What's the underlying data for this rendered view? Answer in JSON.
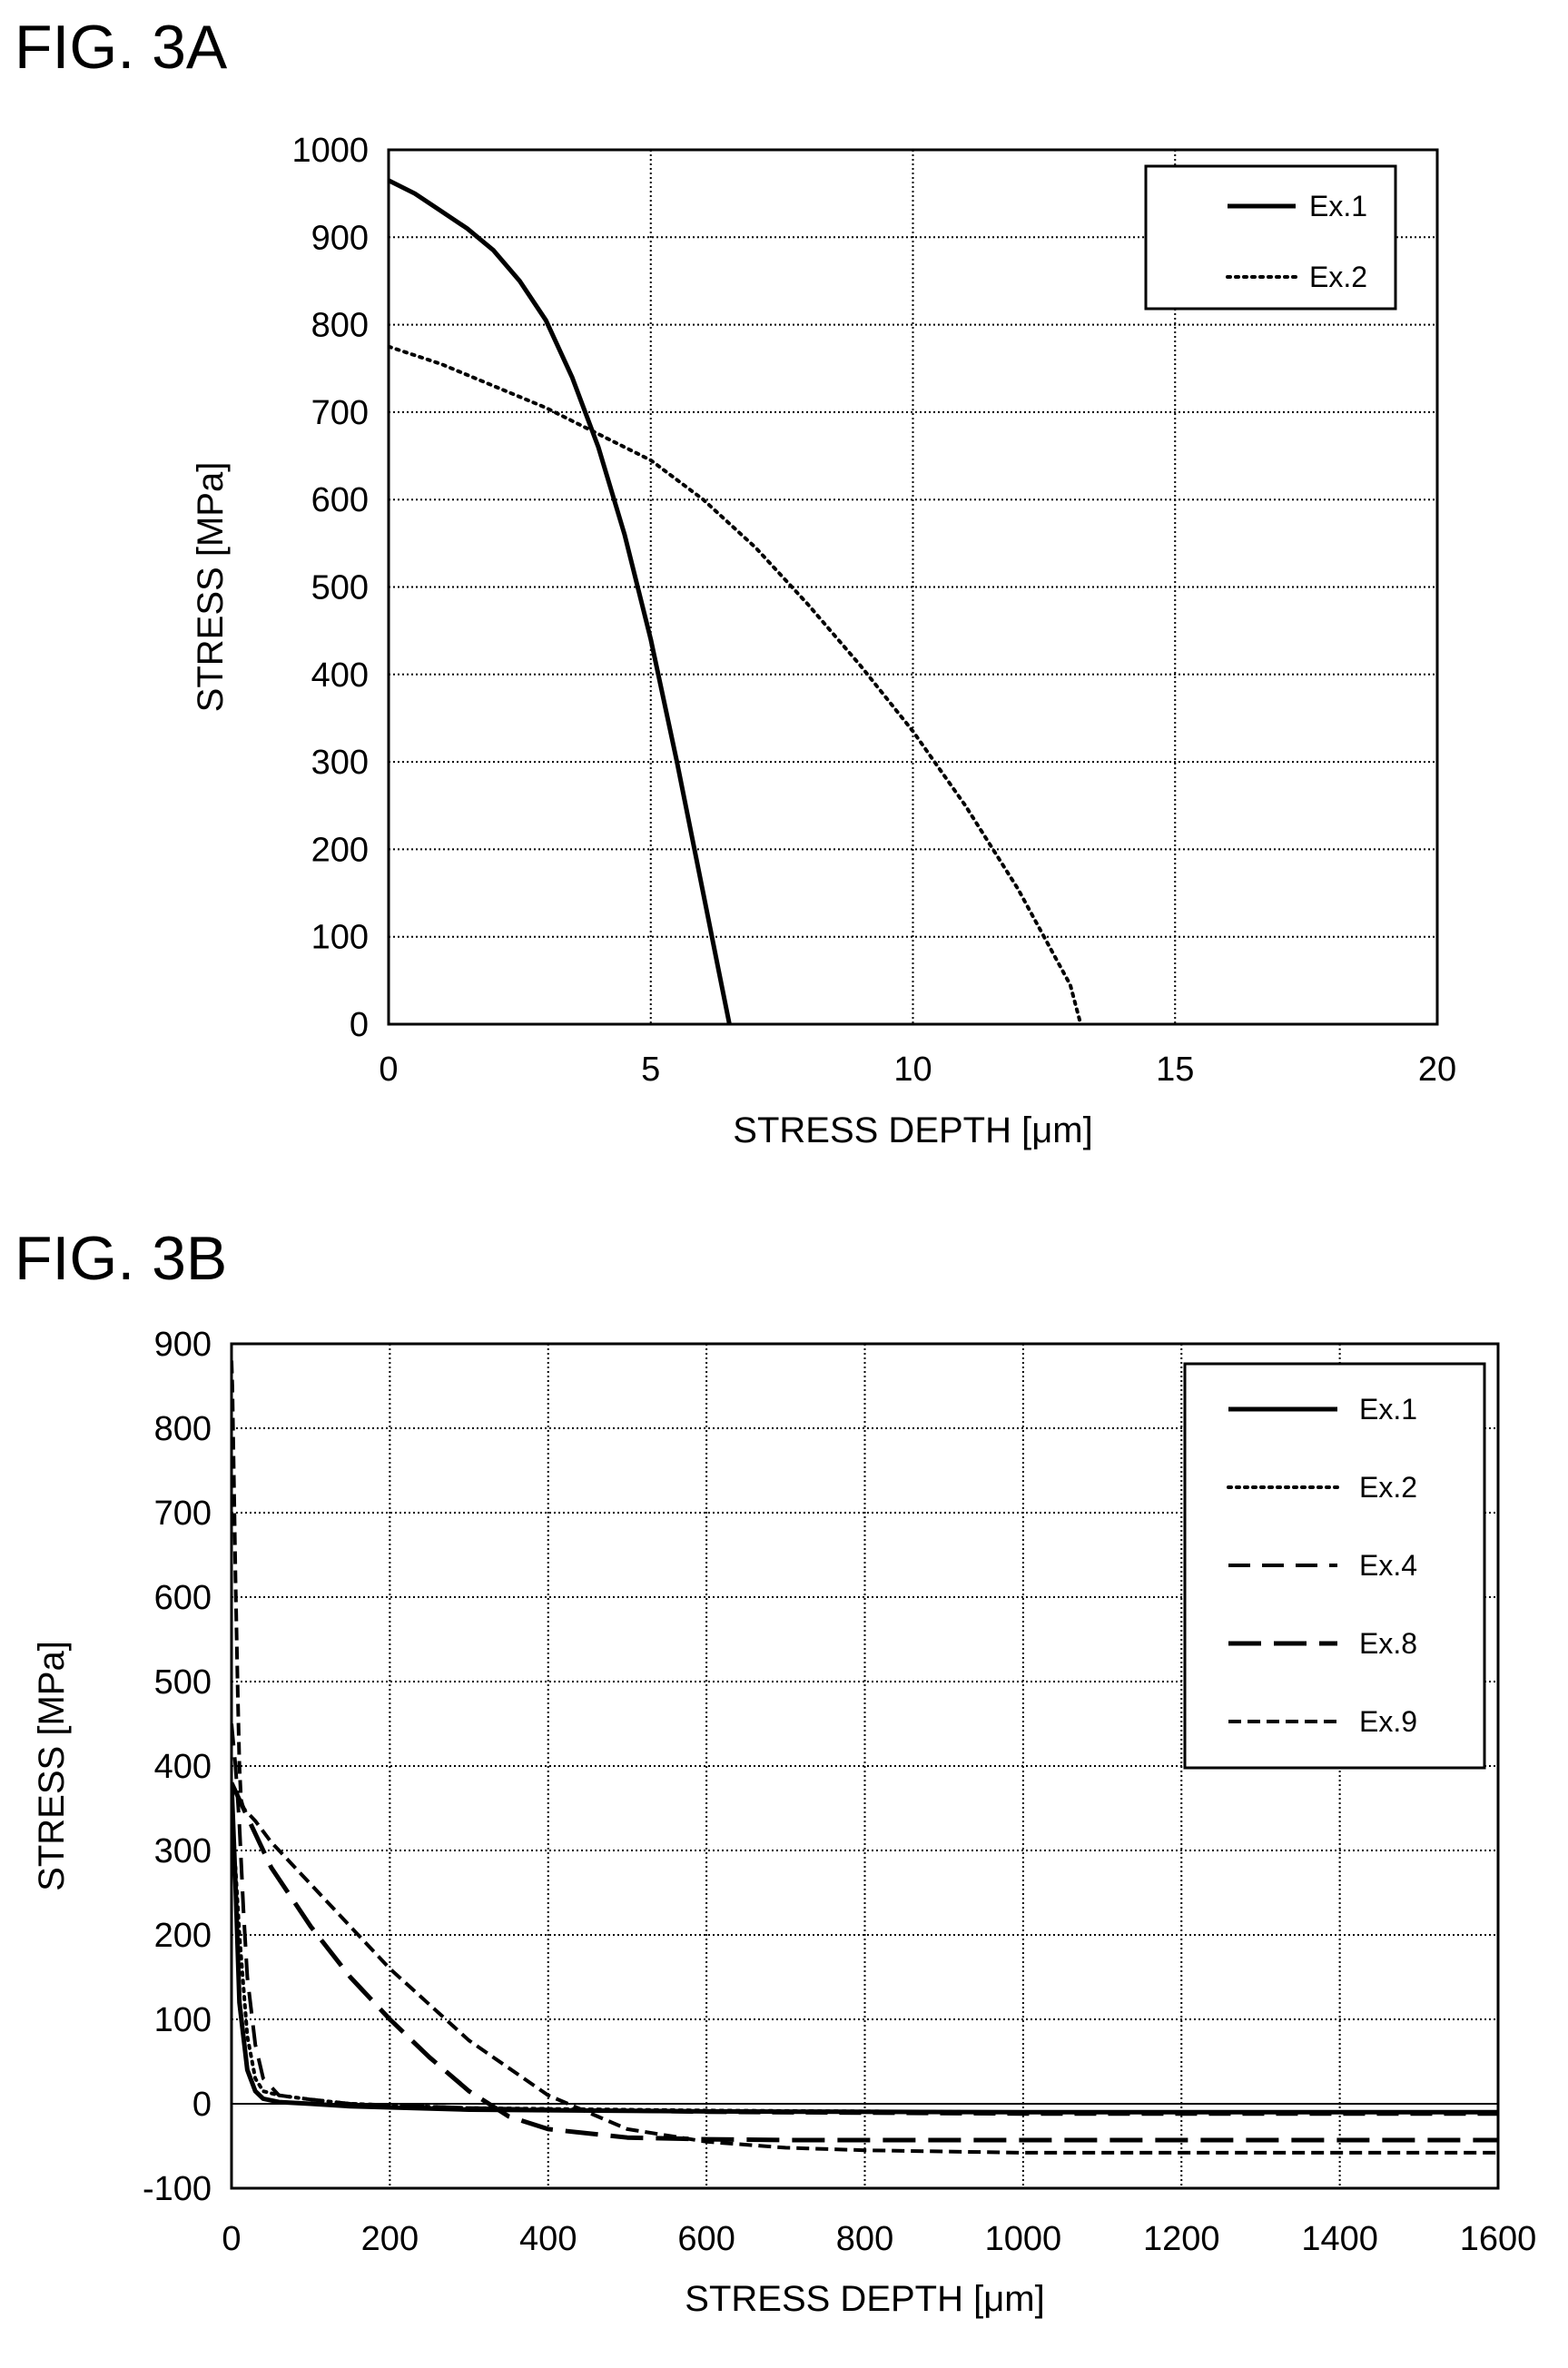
{
  "figures": [
    {
      "label": "FIG. 3A"
    },
    {
      "label": "FIG. 3B"
    }
  ],
  "chart_data": [
    {
      "type": "line",
      "title": "",
      "xlabel": "STRESS DEPTH [μm]",
      "ylabel": "STRESS [MPa]",
      "xlim": [
        0,
        20
      ],
      "ylim": [
        0,
        1000
      ],
      "xticks": [
        "0",
        "5",
        "10",
        "15",
        "20"
      ],
      "yticks": [
        "0",
        "100",
        "200",
        "300",
        "400",
        "500",
        "600",
        "700",
        "800",
        "900",
        "1000"
      ],
      "grid": true,
      "legend_position": "top-right",
      "series": [
        {
          "name": "Ex.1",
          "style": "solid",
          "x": [
            0,
            0.5,
            1,
            1.5,
            2,
            2.5,
            3,
            3.5,
            4,
            4.5,
            5,
            5.5,
            6,
            6.3,
            6.5
          ],
          "y": [
            965,
            950,
            930,
            910,
            885,
            850,
            805,
            740,
            660,
            560,
            440,
            300,
            150,
            60,
            0
          ]
        },
        {
          "name": "Ex.2",
          "style": "dotted",
          "x": [
            0,
            1,
            2,
            3,
            4,
            5,
            6,
            7,
            8,
            9,
            10,
            11,
            12,
            13,
            13.2
          ],
          "y": [
            775,
            755,
            730,
            705,
            675,
            645,
            600,
            545,
            480,
            410,
            335,
            250,
            155,
            45,
            0
          ]
        }
      ]
    },
    {
      "type": "line",
      "title": "",
      "xlabel": "STRESS DEPTH [μm]",
      "ylabel": "STRESS [MPa]",
      "xlim": [
        0,
        1600
      ],
      "ylim": [
        -100,
        900
      ],
      "xticks": [
        "0",
        "200",
        "400",
        "600",
        "800",
        "1000",
        "1200",
        "1400",
        "1600"
      ],
      "yticks": [
        "-100",
        "0",
        "100",
        "200",
        "300",
        "400",
        "500",
        "600",
        "700",
        "800",
        "900"
      ],
      "grid": true,
      "legend_position": "top-right",
      "series": [
        {
          "name": "Ex.1",
          "style": "solid",
          "x": [
            0,
            5,
            10,
            20,
            30,
            40,
            60,
            100,
            150,
            300,
            600,
            1000,
            1600
          ],
          "y": [
            380,
            260,
            120,
            40,
            15,
            6,
            2,
            0,
            -3,
            -7,
            -9,
            -10,
            -10
          ]
        },
        {
          "name": "Ex.2",
          "style": "dotted",
          "x": [
            0,
            5,
            10,
            20,
            30,
            40,
            60,
            100,
            150,
            300,
            600,
            1000,
            1600
          ],
          "y": [
            300,
            280,
            200,
            80,
            30,
            15,
            10,
            5,
            0,
            -5,
            -8,
            -10,
            -10
          ]
        },
        {
          "name": "Ex.4",
          "style": "dash",
          "x": [
            0,
            5,
            10,
            15,
            20,
            30,
            40,
            60,
            100,
            150,
            300,
            600,
            1000,
            1600
          ],
          "y": [
            450,
            400,
            330,
            230,
            150,
            70,
            30,
            10,
            5,
            0,
            -5,
            -10,
            -12,
            -12
          ]
        },
        {
          "name": "Ex.8",
          "style": "longdash",
          "x": [
            0,
            20,
            50,
            100,
            150,
            200,
            250,
            300,
            350,
            400,
            500,
            600,
            700,
            1000,
            1600
          ],
          "y": [
            380,
            340,
            280,
            210,
            150,
            100,
            55,
            15,
            -15,
            -30,
            -40,
            -42,
            -43,
            -43,
            -43
          ]
        },
        {
          "name": "Ex.9",
          "style": "shortdash",
          "x": [
            0,
            1,
            3,
            5,
            8,
            10,
            12,
            15,
            20,
            25,
            30,
            50,
            100,
            200,
            300,
            400,
            500,
            600,
            700,
            800,
            1000,
            1600
          ],
          "y": [
            880,
            850,
            740,
            620,
            480,
            400,
            360,
            350,
            345,
            340,
            335,
            310,
            260,
            160,
            75,
            10,
            -30,
            -45,
            -52,
            -55,
            -58,
            -58
          ]
        }
      ]
    }
  ]
}
